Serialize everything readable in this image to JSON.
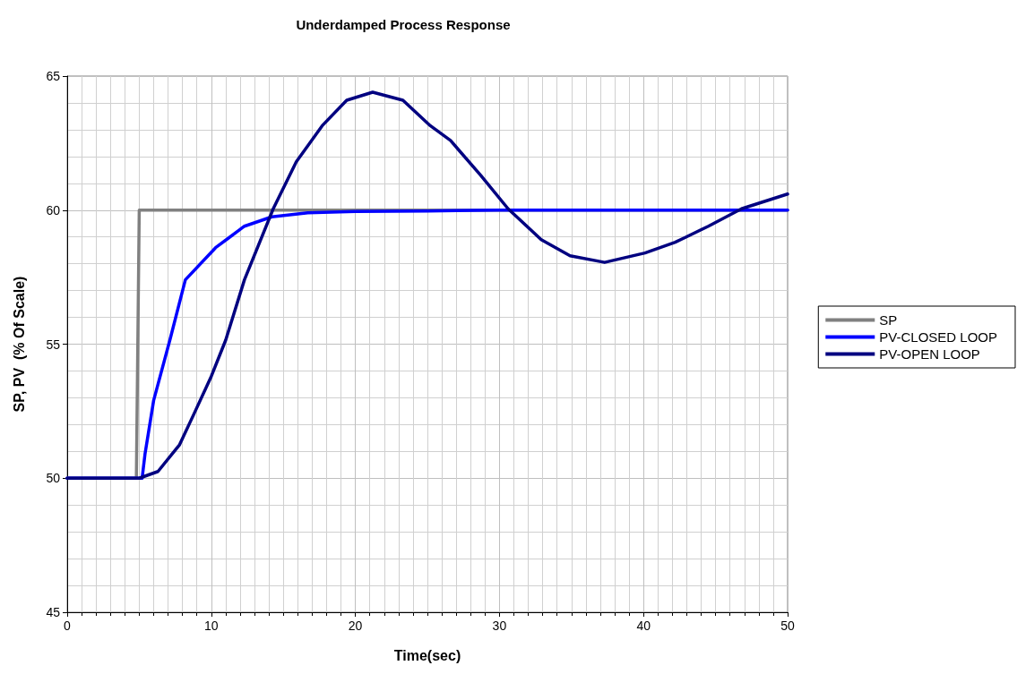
{
  "chart_data": {
    "type": "line",
    "title": "Underdamped Process Response",
    "xlabel": "Time(sec)",
    "ylabel": "SP, PV  (% Of Scale)",
    "xlim": [
      0,
      50
    ],
    "xticks": [
      0,
      10,
      20,
      30,
      40,
      50
    ],
    "ylim": [
      45,
      65
    ],
    "yticks": [
      45,
      50,
      55,
      60,
      65
    ],
    "grid": true,
    "legend": "right",
    "marker": "none",
    "line_style": "solid",
    "series": [
      {
        "name": "SP",
        "color": "#808080",
        "x": [
          0,
          4.8,
          5,
          50
        ],
        "values": [
          50,
          50,
          60,
          60
        ]
      },
      {
        "name": "PV-CLOSED LOOP",
        "color": "#0000ff",
        "x": [
          0,
          5.2,
          5.4,
          6,
          7.15,
          8.2,
          10.3,
          12.3,
          14.2,
          16.7,
          20,
          25,
          30,
          35,
          40,
          45,
          50
        ],
        "values": [
          50,
          50,
          50.9,
          52.9,
          55.2,
          57.4,
          58.6,
          59.4,
          59.75,
          59.9,
          59.95,
          59.97,
          60,
          60,
          60,
          60,
          60
        ]
      },
      {
        "name": "PV-OPEN LOOP",
        "color": "#000080",
        "x": [
          0,
          5,
          6.3,
          7.8,
          8.8,
          10,
          11,
          12.3,
          14.3,
          15.9,
          17.7,
          19.4,
          21.2,
          23.3,
          25.2,
          26.6,
          28.7,
          30.6,
          32.9,
          34.9,
          37.3,
          40.1,
          42.2,
          44.5,
          46.8,
          50
        ],
        "values": [
          50,
          50,
          50.25,
          51.25,
          52.4,
          53.8,
          55.15,
          57.4,
          60.05,
          61.8,
          63.15,
          64.1,
          64.4,
          64.1,
          63.15,
          62.6,
          61.3,
          60.05,
          58.9,
          58.3,
          58.05,
          58.4,
          58.8,
          59.4,
          60.05,
          60.6
        ]
      }
    ]
  }
}
